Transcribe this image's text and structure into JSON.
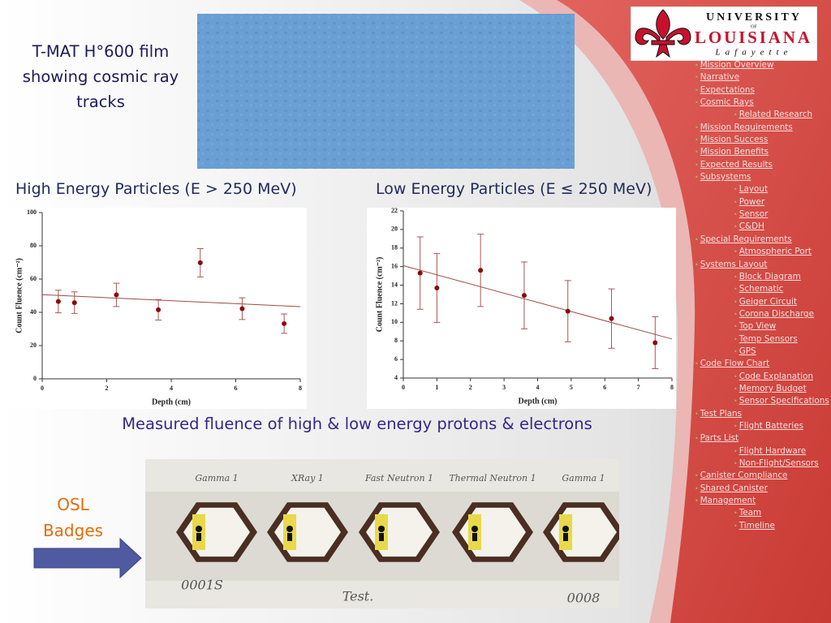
{
  "slide": {
    "film_caption": "T-MAT H°600 film showing cosmic ray tracks",
    "chart_caption": "Measured fluence of high & low energy protons & electrons",
    "osl_label": "OSL Badges"
  },
  "logo": {
    "line1": "UNIVERSITY",
    "of": "OF",
    "name": "LOUISIANA",
    "city": "Lafayette"
  },
  "nav": [
    {
      "label": "Mission Overview"
    },
    {
      "label": "Narrative"
    },
    {
      "label": "Expectations"
    },
    {
      "label": "Cosmic Rays",
      "children": [
        {
          "label": "Related Research"
        }
      ]
    },
    {
      "label": "Mission Requirements"
    },
    {
      "label": "Mission Success"
    },
    {
      "label": "Mission Benefits"
    },
    {
      "label": "Expected Results"
    },
    {
      "label": "Subsystems",
      "children": [
        {
          "label": "Layout"
        },
        {
          "label": "Power"
        },
        {
          "label": "Sensor"
        },
        {
          "label": "C&DH"
        }
      ]
    },
    {
      "label": "Special Requirements",
      "children": [
        {
          "label": "Atmospheric Port"
        }
      ]
    },
    {
      "label": "Systems Layout",
      "children": [
        {
          "label": "Block Diagram"
        },
        {
          "label": "Schematic"
        },
        {
          "label": "Geiger Circuit"
        },
        {
          "label": "Corona Discharge"
        },
        {
          "label": "Top View"
        },
        {
          "label": "Temp Sensors"
        },
        {
          "label": "GPS"
        }
      ]
    },
    {
      "label": "Code Flow Chart",
      "children": [
        {
          "label": "Code Explanation"
        },
        {
          "label": "Memory Budget"
        },
        {
          "label": "Sensor Specifications"
        }
      ]
    },
    {
      "label": "Test Plans",
      "children": [
        {
          "label": "Flight Batteries"
        }
      ]
    },
    {
      "label": "Parts List",
      "children": [
        {
          "label": "Flight Hardware"
        },
        {
          "label": "Non-Flight/Sensors"
        }
      ]
    },
    {
      "label": "Canister Compliance"
    },
    {
      "label": "Shared Canister"
    },
    {
      "label": "Management",
      "children": [
        {
          "label": "Team"
        },
        {
          "label": "Timeline"
        }
      ]
    }
  ],
  "photo": {
    "badges": [
      "Gamma 1",
      "XRay 1",
      "Fast Neutron 1",
      "Thermal Neutron 1",
      "Gamma 1"
    ],
    "notes": [
      "0001S",
      "Test.",
      "0008"
    ]
  },
  "chart_data": [
    {
      "type": "scatter",
      "title": "High Energy Particles (E > 250 MeV)",
      "x_label": "Depth (cm)",
      "y_label": "Count Fluence (cm⁻²)",
      "x": [
        0.5,
        1,
        2.3,
        3.6,
        4.9,
        6.2,
        7.5
      ],
      "values": [
        46.5,
        45.8,
        50.5,
        41.5,
        69.8,
        42.2,
        33.2
      ],
      "errors": [
        6.8,
        6.5,
        7,
        6.2,
        8.5,
        6.5,
        5.8
      ],
      "color": "#8b0a0a",
      "error_color": "#a65a55",
      "trendline": {
        "x": [
          0,
          8
        ],
        "values": [
          50.6,
          43.4
        ]
      },
      "trendline_color": "#9c4a44",
      "xlim": [
        0,
        8
      ],
      "ylim": [
        0,
        100
      ],
      "xticks": [
        0,
        2,
        4,
        6,
        8
      ],
      "yticks": [
        0,
        20,
        40,
        60,
        80,
        100
      ]
    },
    {
      "type": "scatter",
      "title": "Low Energy Particles (E ≤ 250 MeV)",
      "x_label": "Depth (cm)",
      "y_label": "Count Fluence (cm⁻²)",
      "x": [
        0.5,
        1,
        2.3,
        3.6,
        4.9,
        6.2,
        7.5
      ],
      "values": [
        15.3,
        13.7,
        15.6,
        12.9,
        11.2,
        10.4,
        7.8
      ],
      "errors": [
        3.9,
        3.7,
        3.9,
        3.6,
        3.3,
        3.2,
        2.8
      ],
      "color": "#8b0a0a",
      "error_color": "#a65a55",
      "trendline": {
        "x": [
          0,
          8
        ],
        "values": [
          16.1,
          8.2
        ]
      },
      "trendline_color": "#9c4a44",
      "xlim": [
        0,
        8
      ],
      "ylim": [
        4,
        22
      ],
      "xticks": [
        0,
        1,
        2,
        3,
        4,
        5,
        6,
        7,
        8
      ],
      "yticks": [
        4,
        6,
        8,
        10,
        12,
        14,
        16,
        18,
        20,
        22
      ]
    }
  ]
}
